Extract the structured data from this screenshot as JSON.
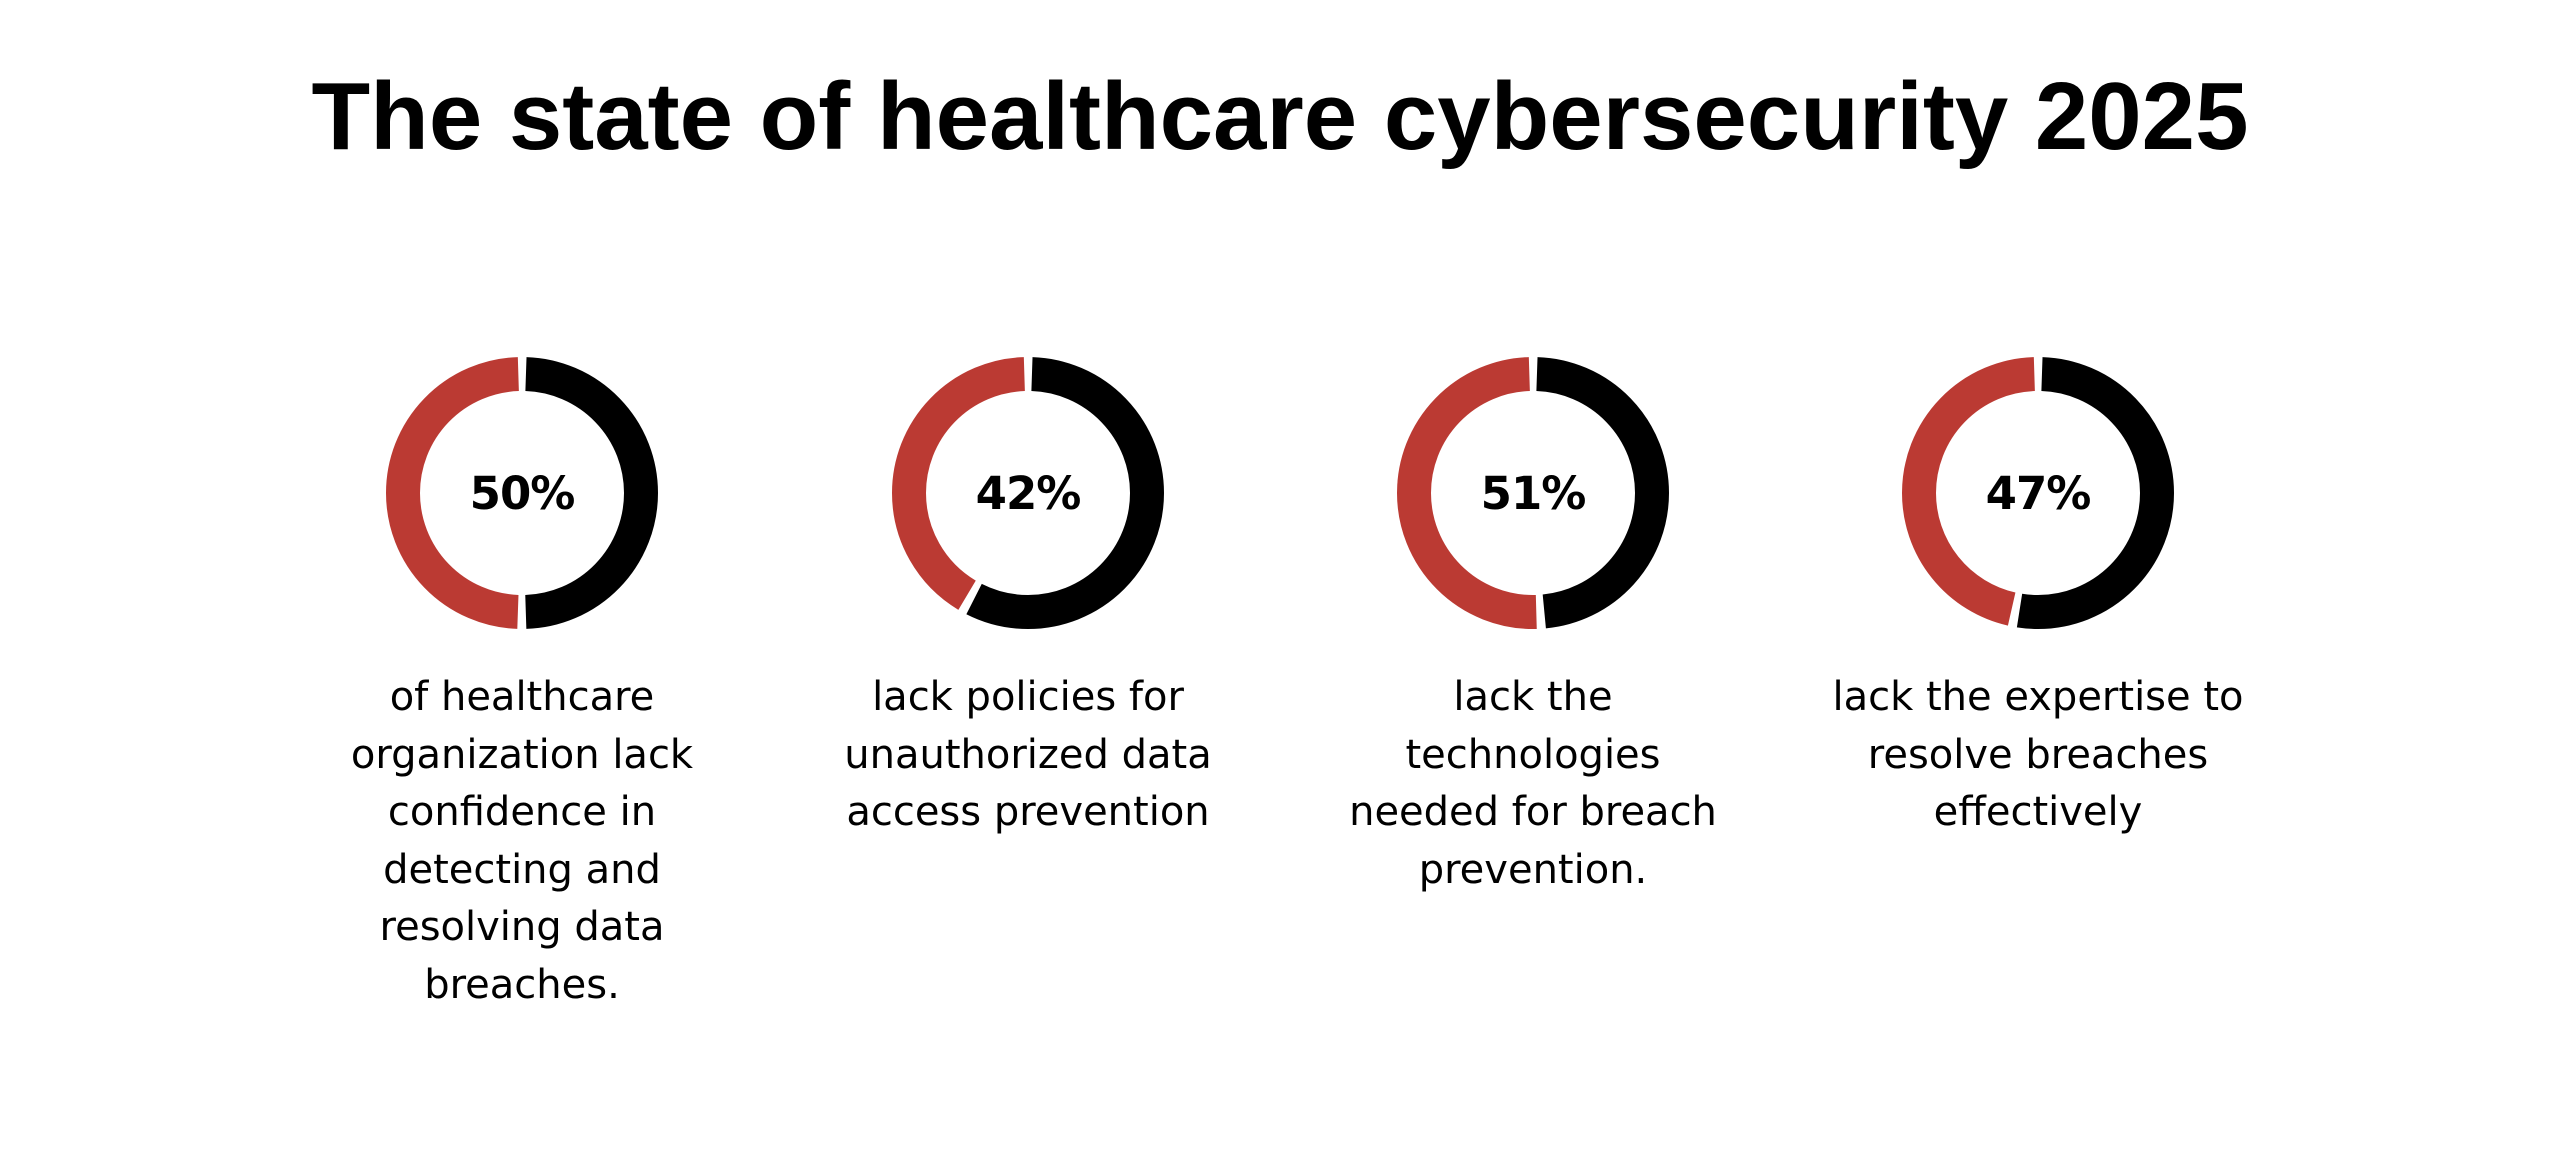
{
  "title": "The state of healthcare cybersecurity 2025",
  "colors": {
    "primary": "#bb3a33",
    "secondary": "#000000",
    "background": "#ffffff"
  },
  "stats": [
    {
      "value_label": "50%",
      "description_lines": [
        "of healthcare",
        "organization lack",
        "confidence in",
        "detecting and",
        "resolving data",
        "breaches."
      ]
    },
    {
      "value_label": "42%",
      "description_lines": [
        "lack policies for",
        "unauthorized data",
        "access prevention"
      ]
    },
    {
      "value_label": "51%",
      "description_lines": [
        "lack the",
        "technologies",
        "needed for breach",
        "prevention."
      ]
    },
    {
      "value_label": "47%",
      "description_lines": [
        "lack the expertise to",
        "resolve breaches",
        "effectively"
      ]
    }
  ],
  "chart_data": [
    {
      "type": "pie",
      "style": "donut",
      "title": "The state of healthcare cybersecurity 2025",
      "categories": [
        "Lack confidence in detecting and resolving data breaches",
        "Remainder"
      ],
      "values": [
        50,
        50
      ],
      "colors": [
        "#bb3a33",
        "#000000"
      ],
      "center_label": "50%",
      "description": "of healthcare organization lack confidence in detecting and resolving data breaches."
    },
    {
      "type": "pie",
      "style": "donut",
      "categories": [
        "Lack policies for unauthorized data access prevention",
        "Remainder"
      ],
      "values": [
        42,
        58
      ],
      "colors": [
        "#bb3a33",
        "#000000"
      ],
      "center_label": "42%",
      "description": "lack policies for unauthorized data access prevention"
    },
    {
      "type": "pie",
      "style": "donut",
      "categories": [
        "Lack the technologies needed for breach prevention",
        "Remainder"
      ],
      "values": [
        51,
        49
      ],
      "colors": [
        "#bb3a33",
        "#000000"
      ],
      "center_label": "51%",
      "description": "lack the technologies needed for breach prevention."
    },
    {
      "type": "pie",
      "style": "donut",
      "categories": [
        "Lack the expertise to resolve breaches effectively",
        "Remainder"
      ],
      "values": [
        47,
        53
      ],
      "colors": [
        "#bb3a33",
        "#000000"
      ],
      "center_label": "47%",
      "description": "lack the expertise to resolve breaches effectively"
    }
  ]
}
